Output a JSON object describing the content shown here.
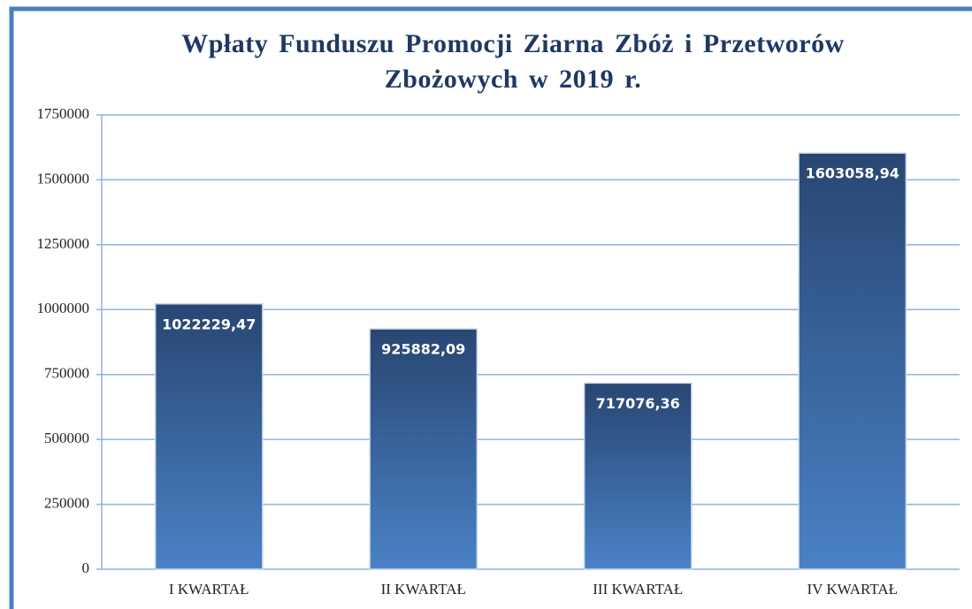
{
  "chart_data": {
    "type": "bar",
    "title": "Wpłaty Funduszu Promocji Ziarna Zbóż i Przetworów Zbożowych w 2019 r.",
    "categories": [
      "I KWARTAŁ",
      "II KWARTAŁ",
      "III KWARTAŁ",
      "IV KWARTAŁ"
    ],
    "values": [
      1022229.47,
      925882.09,
      717076.36,
      1603058.94
    ],
    "value_labels": [
      "1022229,47",
      "925882,09",
      "717076,36",
      "1603058,94"
    ],
    "gradient": [
      "#284672",
      "#4a82c6"
    ],
    "ylim": [
      0,
      1750000
    ],
    "yticks": [
      0,
      250000,
      500000,
      750000,
      1000000,
      1250000,
      1500000,
      1750000
    ],
    "grid": true
  }
}
